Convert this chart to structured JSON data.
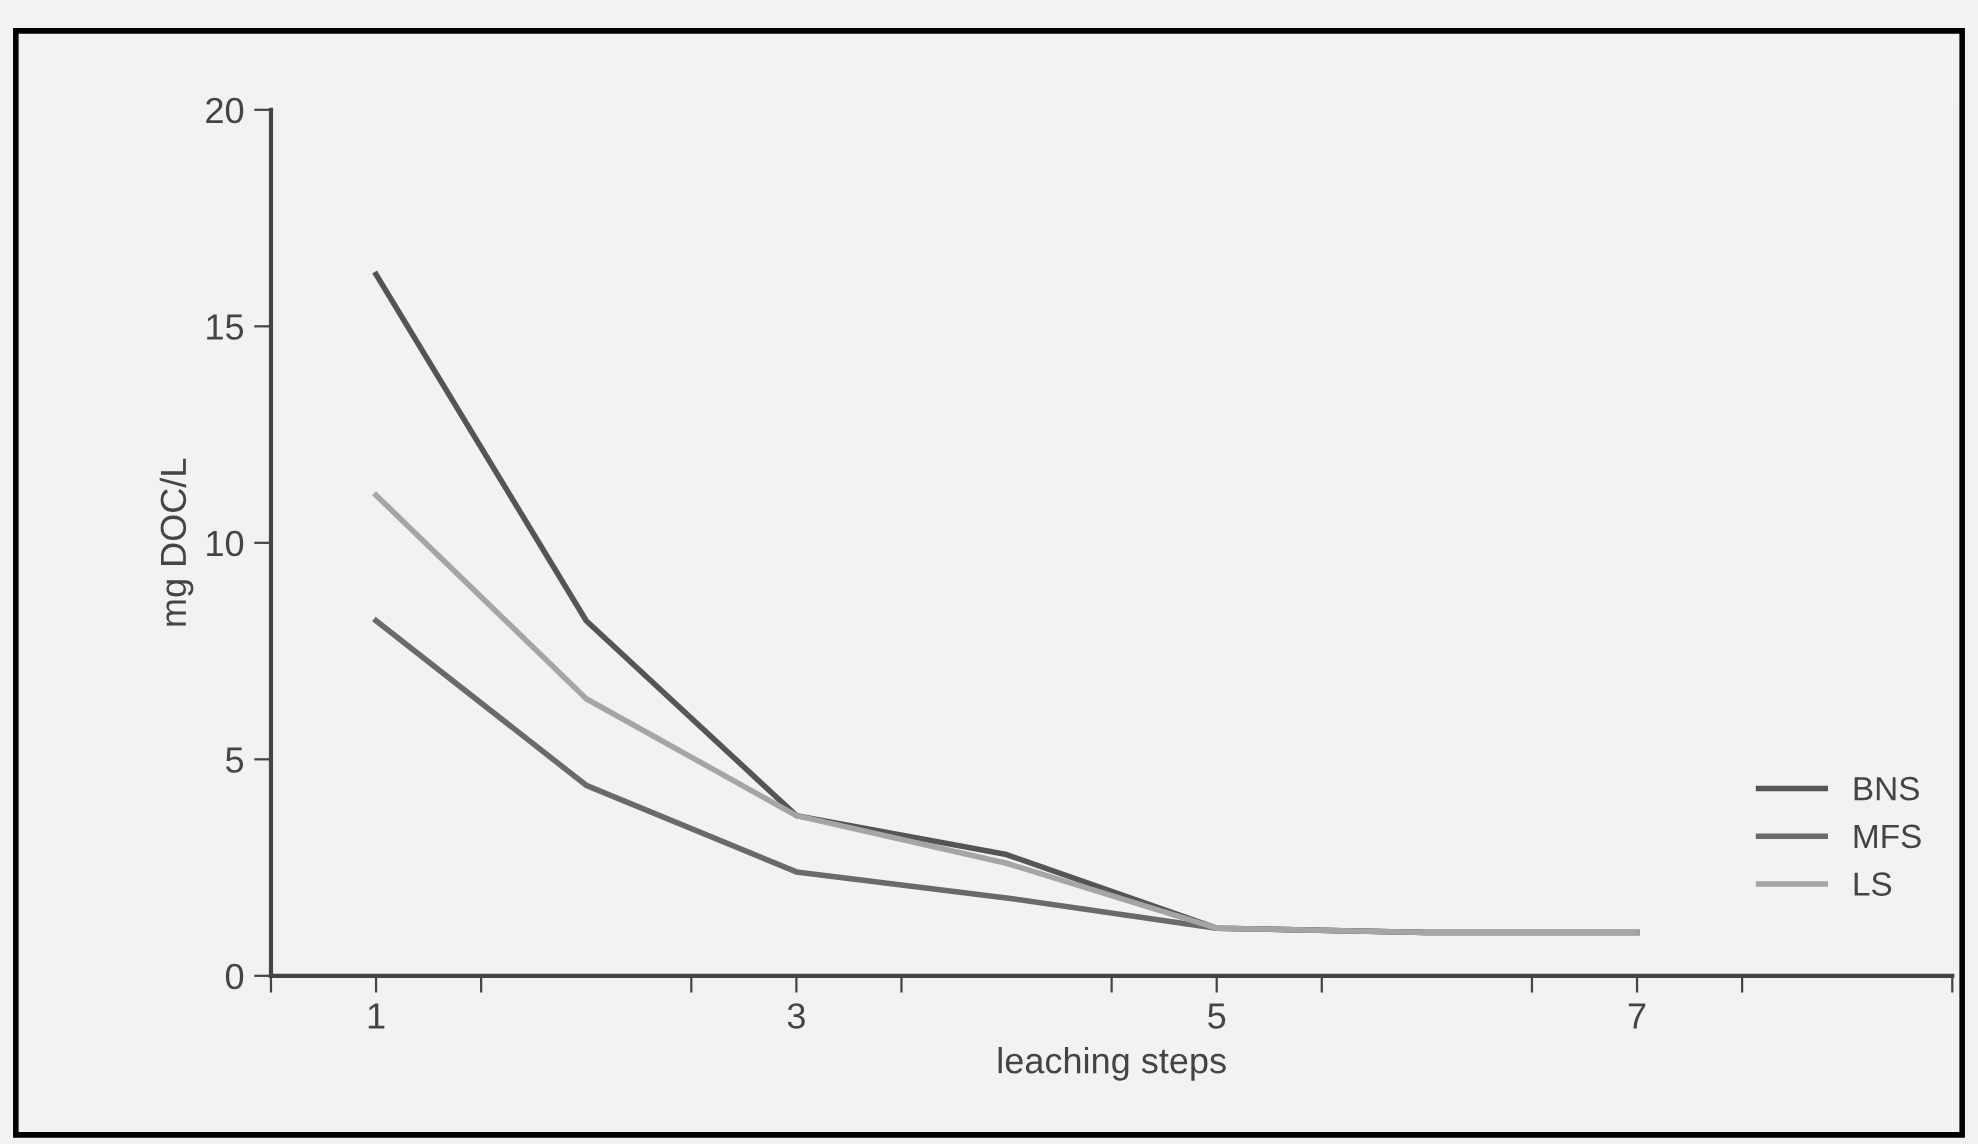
{
  "chart_data": {
    "type": "line",
    "xlabel": "leaching steps",
    "ylabel": "mg DOC/L",
    "x": [
      1,
      2,
      3,
      4,
      5,
      6,
      7
    ],
    "series": [
      {
        "name": "BNS",
        "color": "#555555",
        "values": [
          16.2,
          8.2,
          3.7,
          2.8,
          1.1,
          1.0,
          1.0
        ]
      },
      {
        "name": "MFS",
        "color": "#6a6a6a",
        "values": [
          8.2,
          4.4,
          2.4,
          1.8,
          1.1,
          1.0,
          1.0
        ]
      },
      {
        "name": "LS",
        "color": "#a5a5a5",
        "values": [
          11.1,
          6.4,
          3.7,
          2.6,
          1.1,
          1.0,
          1.0
        ]
      }
    ],
    "xlim": [
      0.5,
      8.5
    ],
    "xticks": [
      {
        "value": 0.5,
        "label": null
      },
      {
        "value": 1,
        "label": "1"
      },
      {
        "value": 1.5,
        "label": null
      },
      {
        "value": 2.5,
        "label": null
      },
      {
        "value": 3,
        "label": "3"
      },
      {
        "value": 3.5,
        "label": null
      },
      {
        "value": 4.5,
        "label": null
      },
      {
        "value": 5,
        "label": "5"
      },
      {
        "value": 5.5,
        "label": null
      },
      {
        "value": 6.5,
        "label": null
      },
      {
        "value": 7,
        "label": "7"
      },
      {
        "value": 7.5,
        "label": null
      },
      {
        "value": 8.5,
        "label": null
      }
    ],
    "ylim": [
      0,
      20
    ],
    "yticks": [
      0,
      5,
      10,
      15,
      20
    ],
    "grid": false,
    "legend": "right",
    "marker": "none",
    "line_style": "solid"
  }
}
